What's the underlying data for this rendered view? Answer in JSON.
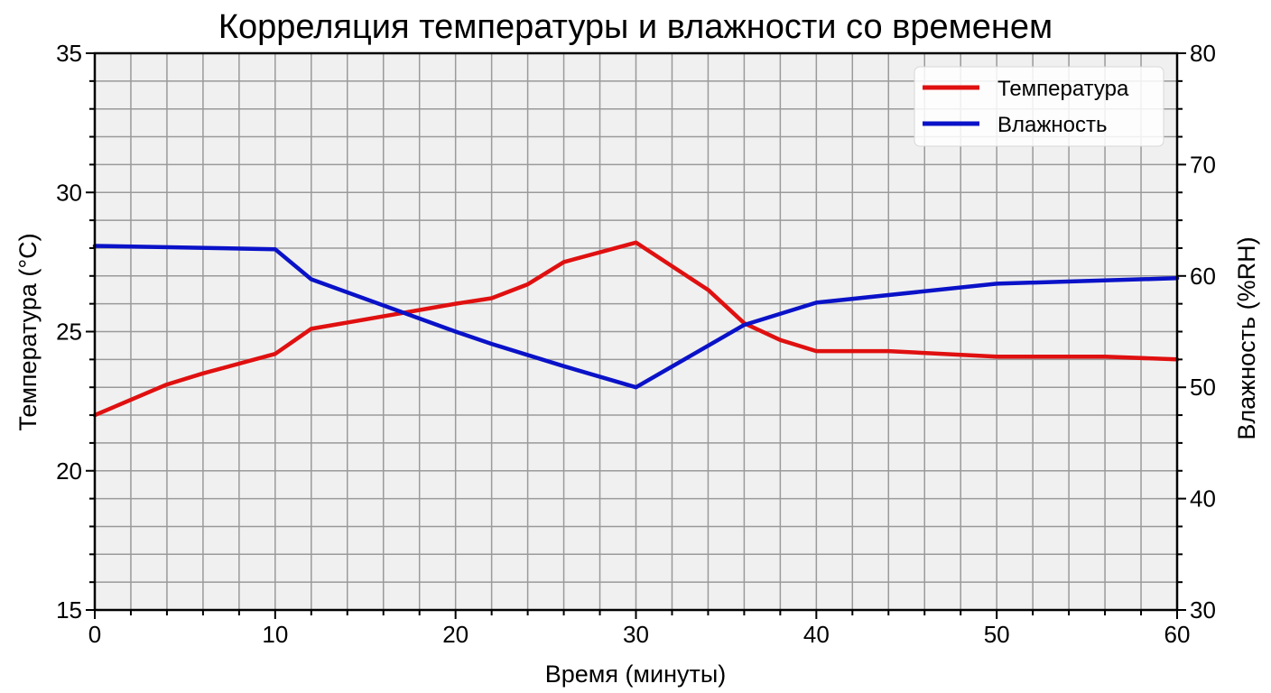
{
  "chart_data": {
    "type": "line",
    "title": "Корреляция температуры и влажности со временем",
    "xlabel": "Время (минуты)",
    "ylabel": "Температура (°C)",
    "y2label": "Влажность (%RH)",
    "xlim": [
      0,
      60
    ],
    "ylim": [
      15,
      35
    ],
    "y2lim": [
      30,
      80
    ],
    "xticks": [
      0,
      10,
      20,
      30,
      40,
      50,
      60
    ],
    "yticks": [
      15,
      20,
      25,
      30,
      35
    ],
    "y2ticks": [
      30,
      40,
      50,
      60,
      70,
      80
    ],
    "grid": true,
    "legend_position": "upper right",
    "series": [
      {
        "name": "Температура",
        "axis": "left",
        "color": "#e01010",
        "x": [
          0,
          4,
          6,
          10,
          12,
          20,
          22,
          24,
          26,
          30,
          34,
          36,
          38,
          40,
          44,
          50,
          56,
          60
        ],
        "values": [
          22.0,
          23.1,
          23.5,
          24.2,
          25.1,
          26.0,
          26.2,
          26.7,
          27.5,
          28.2,
          26.5,
          25.3,
          24.7,
          24.3,
          24.3,
          24.1,
          24.1,
          24.0
        ]
      },
      {
        "name": "Влажность",
        "axis": "right",
        "color": "#0a12c8",
        "x": [
          0,
          10,
          12,
          20,
          22,
          26,
          30,
          36,
          40,
          50,
          60
        ],
        "values": [
          62.7,
          62.4,
          59.7,
          55.0,
          53.9,
          51.9,
          50.0,
          55.6,
          57.6,
          59.3,
          59.8
        ]
      }
    ]
  }
}
